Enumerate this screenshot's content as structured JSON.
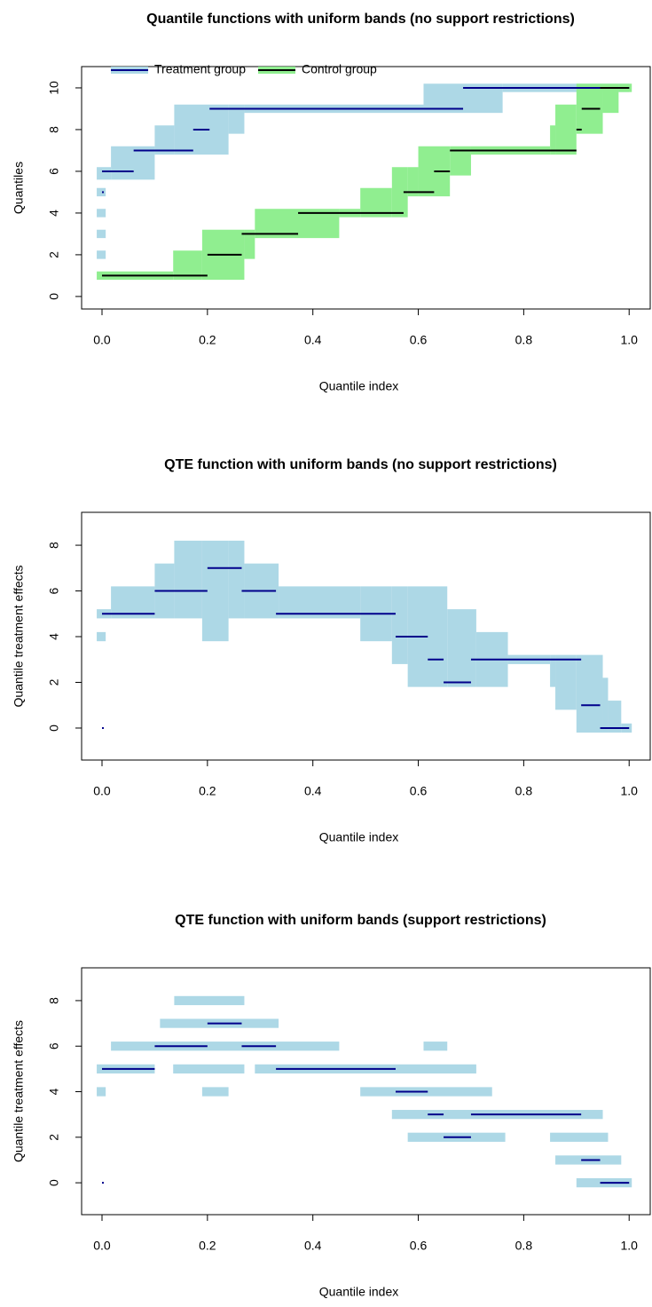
{
  "chart_data": [
    {
      "type": "step",
      "title": "Quantile functions with uniform bands (no support restrictions)",
      "x_label": "Quantile index",
      "y_label": "Quantiles",
      "xlim": [
        -0.0387,
        1.04
      ],
      "ylim": [
        -0.6,
        11.02
      ],
      "xticks": [
        {
          "value": 0,
          "label": "0.0"
        },
        0.2,
        0.4,
        0.6,
        0.8,
        {
          "value": 1,
          "label": "1.0"
        }
      ],
      "yticks": [
        0,
        2,
        4,
        6,
        8,
        10
      ],
      "legend": "topleft",
      "series": [
        {
          "name": "Treatment group",
          "color": "#00008b",
          "band_color": "#add8e6",
          "x_start": [
            0,
            0,
            0.06,
            0.173,
            0.204,
            0.685
          ],
          "x_end": [
            0.003,
            0.06,
            0.173,
            0.204,
            0.685,
            1
          ],
          "values": [
            5,
            6,
            7,
            8,
            9,
            10
          ],
          "band_x_start": [
            -0.01,
            -0.01,
            -0.01,
            -0.01,
            -0.01,
            0.017,
            0.1,
            0.137,
            0.24,
            0.27,
            0.61,
            0.76
          ],
          "band_x_end": [
            0.007,
            0.007,
            0.007,
            0.007,
            0.017,
            0.1,
            0.137,
            0.24,
            0.27,
            0.61,
            0.76,
            1
          ],
          "band_lower": [
            1.8,
            2.8,
            3.8,
            4.8,
            5.6,
            5.6,
            6.8,
            6.8,
            7.8,
            8.8,
            8.8,
            9.8
          ],
          "band_upper": [
            2.2,
            3.2,
            4.2,
            5.2,
            6.2,
            7.2,
            8.2,
            9.2,
            9.2,
            9.2,
            10.2,
            10.2
          ]
        },
        {
          "name": "Control group",
          "color": "#000000",
          "band_color": "#90ee90",
          "x_start": [
            0,
            0.2,
            0.265,
            0.372,
            0.572,
            0.63,
            0.66,
            0.9,
            0.91,
            0.945
          ],
          "x_end": [
            0.2,
            0.265,
            0.372,
            0.572,
            0.63,
            0.66,
            0.9,
            0.91,
            0.945,
            1
          ],
          "values": [
            1,
            2,
            3,
            4,
            5,
            6,
            7,
            8,
            9,
            10
          ],
          "band_x_start": [
            -0.01,
            0.135,
            0.19,
            0.27,
            0.29,
            0.45,
            0.49,
            0.55,
            0.58,
            0.6,
            0.66,
            0.7,
            0.85,
            0.86,
            0.9,
            0.95,
            0.98
          ],
          "band_x_end": [
            0.135,
            0.19,
            0.27,
            0.29,
            0.45,
            0.49,
            0.55,
            0.58,
            0.6,
            0.66,
            0.7,
            0.85,
            0.86,
            0.9,
            0.95,
            0.98,
            1.005
          ],
          "band_lower": [
            0.8,
            0.8,
            0.8,
            1.8,
            2.8,
            3.8,
            3.8,
            3.8,
            4.8,
            4.8,
            5.8,
            6.8,
            6.8,
            6.8,
            7.8,
            8.8,
            9.8
          ],
          "band_upper": [
            1.2,
            2.2,
            3.2,
            3.2,
            4.2,
            4.2,
            5.2,
            6.2,
            6.2,
            7.2,
            7.2,
            7.2,
            8.2,
            9.2,
            10.2,
            10.2,
            10.2
          ]
        }
      ]
    },
    {
      "type": "step",
      "title": "QTE function with uniform bands (no support restrictions)",
      "x_label": "Quantile index",
      "y_label": "Quantile treatment effects",
      "xlim": [
        -0.0387,
        1.04
      ],
      "ylim": [
        -1.4,
        9.44
      ],
      "xticks": [
        {
          "value": 0,
          "label": "0.0"
        },
        0.2,
        0.4,
        0.6,
        0.8,
        {
          "value": 1,
          "label": "1.0"
        }
      ],
      "yticks": [
        0,
        2,
        4,
        6,
        8
      ],
      "series": [
        {
          "color": "#00008b",
          "band_color": "#add8e6",
          "x_start": [
            0,
            0,
            0.1,
            0.2,
            0.265,
            0.33,
            0.557,
            0.618,
            0.648,
            0.7,
            0.909,
            0.945
          ],
          "x_end": [
            0.003,
            0.1,
            0.2,
            0.265,
            0.33,
            0.557,
            0.618,
            0.648,
            0.7,
            0.909,
            0.945,
            1
          ],
          "values": [
            0,
            5,
            6,
            7,
            6,
            5,
            4,
            3,
            2,
            3,
            1,
            0
          ],
          "band_x_start": [
            -0.01,
            -0.01,
            0.017,
            0.1,
            0.137,
            0.19,
            0.24,
            0.27,
            0.335,
            0.49,
            0.55,
            0.58,
            0.655,
            0.71,
            0.77,
            0.85,
            0.86,
            0.9,
            0.95,
            0.96,
            0.985
          ],
          "band_x_end": [
            0.007,
            0.017,
            0.1,
            0.137,
            0.19,
            0.24,
            0.27,
            0.335,
            0.49,
            0.55,
            0.58,
            0.655,
            0.71,
            0.77,
            0.85,
            0.86,
            0.9,
            0.95,
            0.96,
            0.985,
            1.005
          ],
          "band_lower": [
            3.8,
            4.8,
            4.8,
            4.8,
            4.8,
            3.8,
            4.8,
            4.8,
            4.8,
            3.8,
            2.8,
            1.8,
            1.8,
            1.8,
            2.8,
            1.8,
            0.8,
            -0.2,
            -0.2,
            -0.2,
            -0.2
          ],
          "band_upper": [
            4.2,
            5.2,
            6.2,
            7.2,
            8.2,
            8.2,
            8.2,
            7.2,
            6.2,
            6.2,
            6.2,
            6.2,
            5.2,
            4.2,
            3.2,
            3.2,
            3.2,
            3.2,
            2.2,
            1.2,
            0.2
          ]
        }
      ]
    },
    {
      "type": "step",
      "title": "QTE function with uniform bands (support restrictions)",
      "x_label": "Quantile index",
      "y_label": "Quantile treatment effects",
      "xlim": [
        -0.0387,
        1.04
      ],
      "ylim": [
        -1.4,
        9.44
      ],
      "xticks": [
        {
          "value": 0,
          "label": "0.0"
        },
        0.2,
        0.4,
        0.6,
        0.8,
        {
          "value": 1,
          "label": "1.0"
        }
      ],
      "yticks": [
        0,
        2,
        4,
        6,
        8
      ],
      "series": [
        {
          "color": "#00008b",
          "band_color": "#add8e6",
          "x_start": [
            0,
            0,
            0.1,
            0.2,
            0.265,
            0.33,
            0.557,
            0.618,
            0.648,
            0.7,
            0.909,
            0.945
          ],
          "x_end": [
            0.003,
            0.1,
            0.2,
            0.265,
            0.33,
            0.557,
            0.618,
            0.648,
            0.7,
            0.909,
            0.945,
            1
          ],
          "values": [
            0,
            5,
            6,
            7,
            6,
            5,
            4,
            3,
            2,
            3,
            1,
            0
          ],
          "band_x_start": [
            0.137,
            0.11,
            0.017,
            0.61,
            -0.01,
            0.135,
            0.29,
            -0.01,
            0.19,
            0.49,
            0.55,
            0.58,
            0.85,
            0.86,
            0.9
          ],
          "band_x_end": [
            0.27,
            0.335,
            0.45,
            0.655,
            0.1,
            0.27,
            0.71,
            0.007,
            0.24,
            0.74,
            0.95,
            0.765,
            0.96,
            0.985,
            1.005
          ],
          "band_lower": [
            7.8,
            6.8,
            5.8,
            5.8,
            4.8,
            4.8,
            4.8,
            3.8,
            3.8,
            3.8,
            2.8,
            1.8,
            1.8,
            0.8,
            -0.2
          ],
          "band_upper": [
            8.2,
            7.2,
            6.2,
            6.2,
            5.2,
            5.2,
            5.2,
            4.2,
            4.2,
            4.2,
            3.2,
            2.2,
            2.2,
            1.2,
            0.2
          ]
        }
      ]
    }
  ]
}
